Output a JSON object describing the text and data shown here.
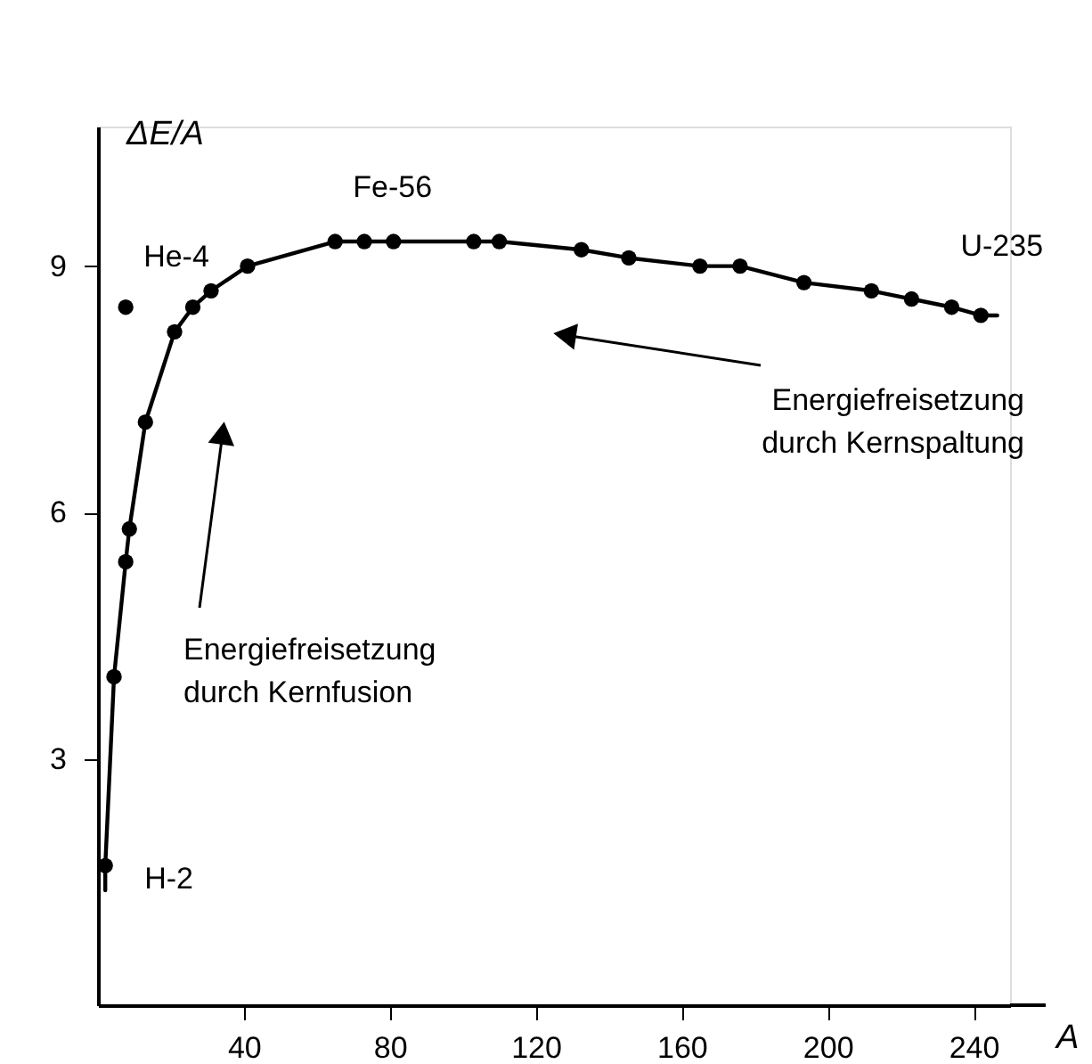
{
  "chart_data": {
    "type": "line",
    "ylabel": "ΔE/A",
    "xlabel": "A",
    "xlim": [
      0,
      250
    ],
    "ylim": [
      0,
      10.7
    ],
    "xticks": [
      40,
      80,
      120,
      160,
      200,
      240
    ],
    "yticks": [
      3,
      6,
      9
    ],
    "grid": false,
    "series": [
      {
        "marker": "none",
        "color": "#000000",
        "x": [
          2,
          2,
          4.4,
          7.6,
          8.6,
          13,
          21,
          26,
          31,
          41,
          65,
          73,
          81,
          103,
          110,
          132.5,
          145.5,
          165,
          176,
          193.5,
          212,
          223,
          234,
          242,
          246.5
        ],
        "values": [
          1.4,
          1.7,
          4.0,
          5.4,
          5.8,
          7.1,
          8.2,
          8.5,
          8.7,
          9.0,
          9.3,
          9.3,
          9.3,
          9.3,
          9.3,
          9.2,
          9.1,
          9.0,
          9.0,
          8.8,
          8.7,
          8.6,
          8.5,
          8.4,
          8.4
        ]
      },
      {
        "type": "scatter",
        "marker": "circle",
        "color": "#000000",
        "x": [
          2,
          4.4,
          7.6,
          8.6,
          13,
          21,
          26,
          31,
          41,
          65,
          73,
          81,
          103,
          110,
          132.5,
          145.5,
          165,
          176,
          193.5,
          212,
          223,
          234,
          242,
          7.6
        ],
        "values": [
          1.7,
          4.0,
          5.4,
          5.8,
          7.1,
          8.2,
          8.5,
          8.7,
          9.0,
          9.3,
          9.3,
          9.3,
          9.3,
          9.3,
          9.2,
          9.1,
          9.0,
          9.0,
          8.8,
          8.7,
          8.6,
          8.5,
          8.4,
          8.5
        ]
      }
    ],
    "annotations": [
      {
        "text": "H-2",
        "x": 2,
        "y": 1.7
      },
      {
        "text": "He-4",
        "x": 7.6,
        "y": 8.5
      },
      {
        "text": "Fe-56",
        "x": 65,
        "y": 9.3
      },
      {
        "text": "U-235",
        "x": 234,
        "y": 8.5
      },
      "Energiefreisetzung\ndurch Kernfusion",
      "Energiefreisetzung\ndurch Kernspaltung"
    ]
  }
}
